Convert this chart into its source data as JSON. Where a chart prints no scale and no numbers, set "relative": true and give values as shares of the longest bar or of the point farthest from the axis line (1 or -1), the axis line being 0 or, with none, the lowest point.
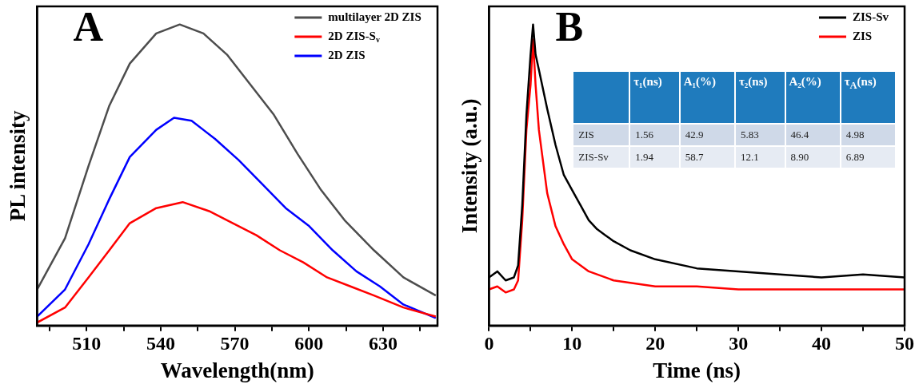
{
  "chart_data": [
    {
      "type": "line",
      "title": "A",
      "xlabel": "Wavelength(nm)",
      "ylabel": "PL intensity",
      "relative": true,
      "legend": "top right",
      "xlim": [
        490,
        652
      ],
      "xticks": [
        {
          "value": 495,
          "label": null
        },
        510,
        {
          "value": 525,
          "label": null
        },
        540,
        {
          "value": 555,
          "label": null
        },
        570,
        {
          "value": 585,
          "label": null
        },
        600,
        {
          "value": 615,
          "label": null
        },
        630,
        {
          "value": 645,
          "label": null
        }
      ],
      "series": [
        {
          "name": "multilayer 2D ZIS",
          "color": "#4d4d4d",
          "x": [
            490,
            501.3,
            510.8,
            519.2,
            527.5,
            538.2,
            547.7,
            557.3,
            566.8,
            576.3,
            585.8,
            595.4,
            604.9,
            614.4,
            626.3,
            638.2,
            651.3
          ],
          "values": [
            0.12,
            0.29,
            0.53,
            0.73,
            0.87,
            0.97,
            1,
            0.97,
            0.9,
            0.8,
            0.7,
            0.57,
            0.45,
            0.35,
            0.25,
            0.16,
            0.1
          ]
        },
        {
          "name": "2D ZIS-S$_{v}$",
          "color": "#ff0000",
          "x": [
            490,
            501.3,
            510.8,
            519.2,
            527.5,
            538.2,
            548.9,
            559.6,
            569.2,
            578.7,
            588.2,
            597.7,
            607.3,
            616.8,
            626.3,
            638.2,
            651.3
          ],
          "values": [
            0.01,
            0.06,
            0.16,
            0.25,
            0.34,
            0.39,
            0.41,
            0.38,
            0.34,
            0.3,
            0.25,
            0.21,
            0.16,
            0.13,
            0.1,
            0.06,
            0.03
          ]
        },
        {
          "name": "2D ZIS",
          "color": "#0000ff",
          "x": [
            490,
            501.3,
            510.8,
            519.2,
            527.5,
            538.2,
            545.4,
            552.5,
            562,
            571.5,
            581.1,
            590.6,
            600.1,
            609.6,
            619.2,
            628.7,
            638.2,
            651.3
          ],
          "values": [
            0.03,
            0.12,
            0.27,
            0.42,
            0.56,
            0.65,
            0.69,
            0.68,
            0.62,
            0.55,
            0.47,
            0.39,
            0.33,
            0.25,
            0.18,
            0.13,
            0.07,
            0.025
          ]
        }
      ]
    },
    {
      "type": "line",
      "title": "B",
      "xlabel": "Time (ns)",
      "ylabel": "Intensity (a.u.)",
      "relative": true,
      "legend": "top right",
      "xlim": [
        0,
        50
      ],
      "xticks": [
        0,
        {
          "value": 5,
          "label": null
        },
        10,
        {
          "value": 15,
          "label": null
        },
        20,
        {
          "value": 25,
          "label": null
        },
        30,
        {
          "value": 35,
          "label": null
        },
        40,
        {
          "value": 45,
          "label": null
        },
        50
      ],
      "annotations": [
        "τ₁(ns)",
        "A₁(%)",
        "τ₂(ns)",
        "A₂(%)",
        "τ$_{A}$(ns)",
        "ZIS",
        "1.56",
        "42.9",
        "5.83",
        "46.4",
        "4.98",
        "ZIS-Sv",
        "1.94",
        "58.7",
        "12.1",
        "8.90",
        "6.89"
      ],
      "series": [
        {
          "name": "ZIS-Sv",
          "color": "#000000",
          "x": [
            0,
            1,
            2,
            3,
            3.5,
            4,
            4.5,
            5,
            5.3,
            5.6,
            6,
            7,
            8,
            9,
            10,
            11,
            12,
            13,
            14,
            15,
            17,
            20,
            25,
            30,
            35,
            40,
            45,
            50
          ],
          "values": [
            0.16,
            0.18,
            0.15,
            0.16,
            0.2,
            0.4,
            0.7,
            0.9,
            1,
            0.9,
            0.85,
            0.72,
            0.6,
            0.5,
            0.45,
            0.4,
            0.35,
            0.32,
            0.3,
            0.28,
            0.25,
            0.22,
            0.19,
            0.18,
            0.17,
            0.16,
            0.17,
            0.16
          ]
        },
        {
          "name": "ZIS",
          "color": "#ff0000",
          "x": [
            0,
            1,
            2,
            3,
            3.5,
            4,
            4.5,
            5,
            5.3,
            5.6,
            6,
            7,
            8,
            9,
            10,
            12,
            15,
            20,
            25,
            30,
            40,
            50
          ],
          "values": [
            0.12,
            0.13,
            0.11,
            0.12,
            0.15,
            0.35,
            0.65,
            0.8,
            0.95,
            0.8,
            0.65,
            0.44,
            0.33,
            0.27,
            0.22,
            0.18,
            0.15,
            0.13,
            0.13,
            0.12,
            0.12,
            0.12
          ]
        }
      ]
    }
  ]
}
